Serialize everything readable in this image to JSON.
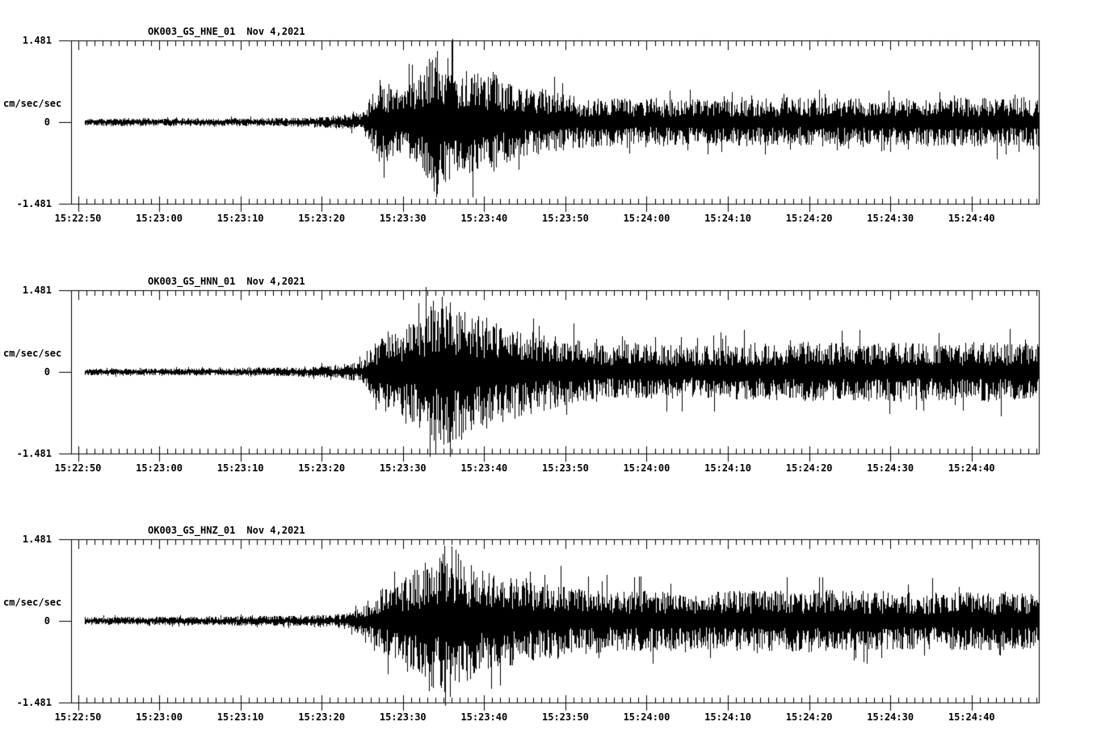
{
  "page": {
    "background": "#ffffff",
    "ink": "#000000"
  },
  "y_axis": {
    "max": "1.481",
    "zero": "0",
    "min": "-1.481",
    "units": "cm/sec/sec"
  },
  "panels": [
    {
      "title": "OK003_GS_HNE_01",
      "date": "Nov 4,2021",
      "channel": "HNE"
    },
    {
      "title": "OK003_GS_HNN_01",
      "date": "Nov 4,2021",
      "channel": "HNN"
    },
    {
      "title": "OK003_GS_HNZ_01",
      "date": "Nov 4,2021",
      "channel": "HNZ"
    }
  ],
  "x_ticks": [
    "15:22:50",
    "15:23:00",
    "15:23:10",
    "15:23:20",
    "15:23:30",
    "15:23:40",
    "15:23:50",
    "15:24:00",
    "15:24:10",
    "15:24:20",
    "15:24:30",
    "15:24:40"
  ],
  "chart_data": {
    "type": "line",
    "subtype": "seismogram-3-channel",
    "station": "OK003",
    "network": "GS",
    "date": "Nov 4,2021",
    "ylabel": "cm/sec/sec",
    "ylim": [
      -1.481,
      1.481
    ],
    "x_start_label": "15:22:50",
    "x_end_label": "15:24:48",
    "seconds_per_minor_tick": 1,
    "seconds_per_major_tick": 10,
    "grid": false,
    "legend": "none",
    "note": "envelope = [seconds after 15:22:50, peak amplitude cm/sec/sec]; dense black noise trace fills ± envelope",
    "series": [
      {
        "name": "OK003_GS_HNE_01",
        "channel": "HNE",
        "seed": 101,
        "envelope": [
          [
            0.9,
            0.07
          ],
          [
            20,
            0.07
          ],
          [
            26,
            0.08
          ],
          [
            30,
            0.1
          ],
          [
            33,
            0.13
          ],
          [
            35,
            0.18
          ],
          [
            36,
            0.45
          ],
          [
            37,
            0.8
          ],
          [
            38,
            0.72
          ],
          [
            39.5,
            0.6
          ],
          [
            41,
            0.75
          ],
          [
            42.5,
            0.95
          ],
          [
            44,
            1.38
          ],
          [
            45,
            1.25
          ],
          [
            46.5,
            1.1
          ],
          [
            48,
            0.95
          ],
          [
            50,
            0.85
          ],
          [
            51,
            0.95
          ],
          [
            52.5,
            0.75
          ],
          [
            55,
            0.62
          ],
          [
            57.5,
            0.6
          ],
          [
            60,
            0.5
          ],
          [
            65,
            0.45
          ],
          [
            70,
            0.42
          ],
          [
            80,
            0.42
          ],
          [
            90,
            0.45
          ],
          [
            100,
            0.42
          ],
          [
            110,
            0.45
          ],
          [
            118.5,
            0.45
          ]
        ]
      },
      {
        "name": "OK003_GS_HNN_01",
        "channel": "HNN",
        "seed": 202,
        "envelope": [
          [
            0.9,
            0.06
          ],
          [
            20,
            0.07
          ],
          [
            28,
            0.09
          ],
          [
            32,
            0.12
          ],
          [
            35,
            0.2
          ],
          [
            36.5,
            0.55
          ],
          [
            38,
            0.75
          ],
          [
            40,
            0.8
          ],
          [
            42,
            1.05
          ],
          [
            43.5,
            1.3
          ],
          [
            45,
            1.4
          ],
          [
            46.5,
            1.3
          ],
          [
            48,
            1.22
          ],
          [
            50,
            1.1
          ],
          [
            52,
            0.95
          ],
          [
            54,
            0.85
          ],
          [
            56,
            0.75
          ],
          [
            58,
            0.7
          ],
          [
            60,
            0.62
          ],
          [
            63,
            0.55
          ],
          [
            66,
            0.5
          ],
          [
            70,
            0.5
          ],
          [
            75,
            0.48
          ],
          [
            80,
            0.5
          ],
          [
            85,
            0.52
          ],
          [
            90,
            0.55
          ],
          [
            95,
            0.52
          ],
          [
            100,
            0.55
          ],
          [
            105,
            0.52
          ],
          [
            110,
            0.55
          ],
          [
            118.5,
            0.52
          ]
        ]
      },
      {
        "name": "OK003_GS_HNZ_01",
        "channel": "HNZ",
        "seed": 303,
        "envelope": [
          [
            0.9,
            0.07
          ],
          [
            15,
            0.08
          ],
          [
            20,
            0.09
          ],
          [
            25,
            0.09
          ],
          [
            30,
            0.11
          ],
          [
            33,
            0.14
          ],
          [
            35,
            0.25
          ],
          [
            36.5,
            0.55
          ],
          [
            38,
            0.65
          ],
          [
            40,
            0.75
          ],
          [
            42,
            1.0
          ],
          [
            43.5,
            1.2
          ],
          [
            45,
            1.35
          ],
          [
            46,
            1.45
          ],
          [
            47,
            1.2
          ],
          [
            48.5,
            1.05
          ],
          [
            50,
            0.95
          ],
          [
            52,
            0.85
          ],
          [
            54,
            0.8
          ],
          [
            56,
            0.75
          ],
          [
            58,
            0.72
          ],
          [
            60,
            0.65
          ],
          [
            63,
            0.6
          ],
          [
            67,
            0.55
          ],
          [
            70,
            0.55
          ],
          [
            75,
            0.52
          ],
          [
            80,
            0.55
          ],
          [
            85,
            0.55
          ],
          [
            90,
            0.58
          ],
          [
            95,
            0.55
          ],
          [
            100,
            0.55
          ],
          [
            105,
            0.52
          ],
          [
            110,
            0.55
          ],
          [
            118.5,
            0.52
          ]
        ]
      }
    ]
  }
}
